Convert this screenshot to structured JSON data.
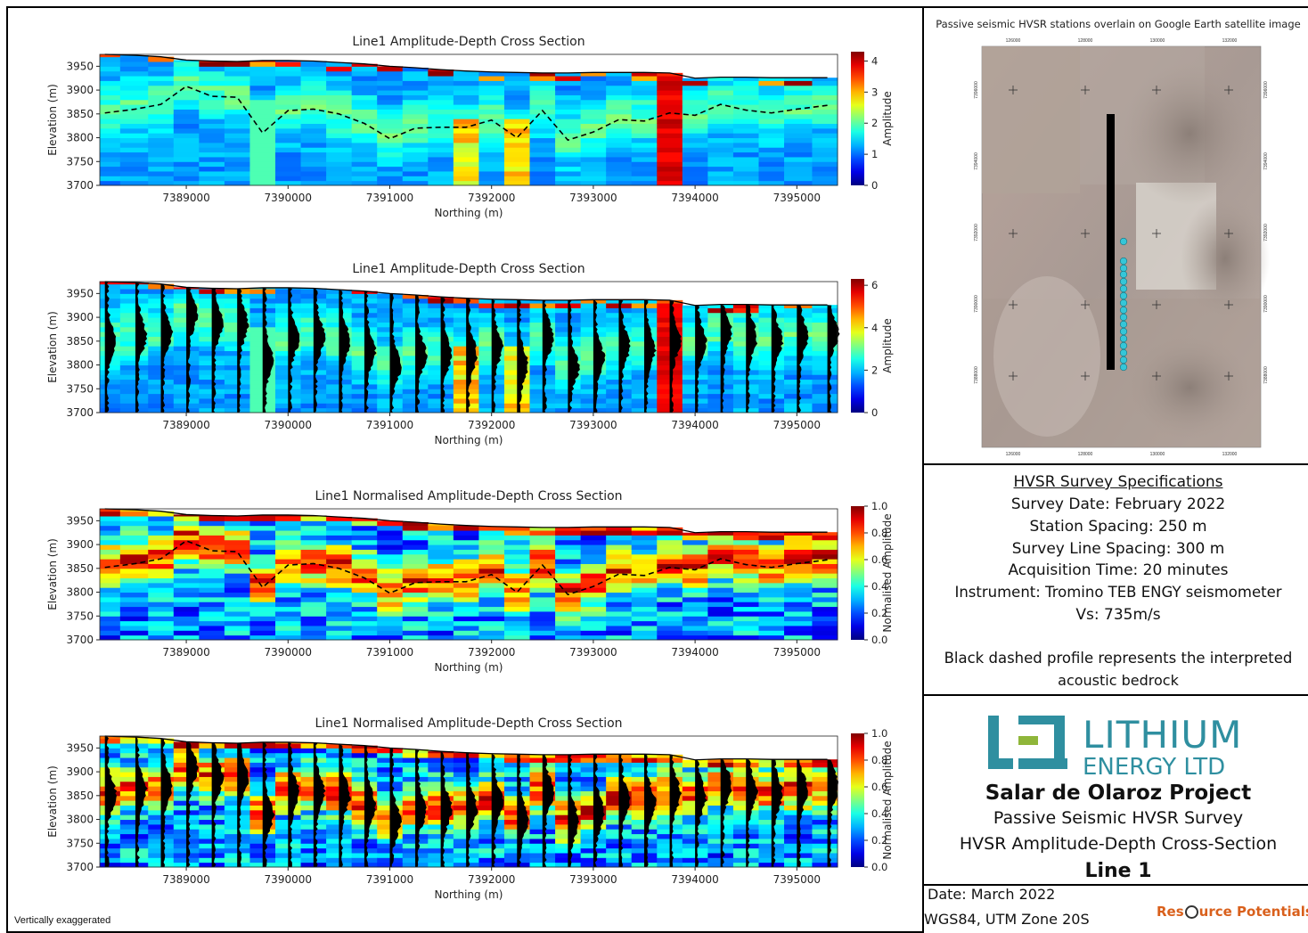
{
  "note": "Vertically exaggerated",
  "map": {
    "title": "Passive seismic HVSR stations overlain on Google Earth satellite image",
    "top_ticks": [
      "126000",
      "128000",
      "130000",
      "132000"
    ],
    "bottom_ticks": [
      "126000",
      "128000",
      "130000",
      "132000"
    ],
    "left_ticks": [
      "7396000",
      "7394000",
      "7392000",
      "7390000",
      "7388000"
    ],
    "right_ticks": [
      "7396000",
      "7394000",
      "7392000",
      "7390000",
      "7388000"
    ],
    "station_color": "#35c6d8",
    "line_color": "#000000"
  },
  "specs": {
    "heading": "HVSR Survey Specifications",
    "lines": [
      "Survey Date: February 2022",
      "Station Spacing:  250 m",
      "Survey Line Spacing: 300 m",
      "Acquisition Time: 20 minutes",
      "Instrument: Tromino TEB ENGY seismometer",
      "Vs: 735m/s"
    ],
    "note": [
      "Black dashed profile represents the interpreted",
      "acoustic bedrock"
    ]
  },
  "logo": {
    "word1": "LITHIUM",
    "word2": "ENERGY LTD",
    "accent": "#2f8fa0",
    "secondary": "#8fb63a"
  },
  "project": {
    "name": "Salar de Olaroz Project",
    "subtitle1": "Passive Seismic HVSR Survey",
    "subtitle2": "HVSR Amplitude-Depth Cross-Section",
    "line": "Line 1"
  },
  "footer": {
    "date": "Date: March 2022",
    "datum": "WGS84, UTM Zone 20S",
    "brand_left": "Res",
    "brand_right": "urce Potentials",
    "brand_color": "#d9601c"
  },
  "chart_data": [
    {
      "type": "heatmap",
      "title": "Line1 Amplitude-Depth Cross Section",
      "xlabel": "Northing (m)",
      "ylabel": "Elevation (m)",
      "colorbar_label": "Amplitude",
      "xticks": [
        7389000,
        7390000,
        7391000,
        7392000,
        7393000,
        7394000,
        7395000
      ],
      "yticks": [
        3700,
        3750,
        3800,
        3850,
        3900,
        3950
      ],
      "xlim": [
        7388150,
        7395400
      ],
      "ylim": [
        3700,
        3975
      ],
      "cbar_ticks": [
        0,
        1,
        2,
        3,
        4
      ],
      "cbar_max": 4.3,
      "normalised": false,
      "wiggles": false,
      "bedrock_dashed": true
    },
    {
      "type": "heatmap",
      "title": "Line1 Amplitude-Depth Cross Section",
      "xlabel": "Northing (m)",
      "ylabel": "Elevation (m)",
      "colorbar_label": "Amplitude",
      "xticks": [
        7389000,
        7390000,
        7391000,
        7392000,
        7393000,
        7394000,
        7395000
      ],
      "yticks": [
        3700,
        3750,
        3800,
        3850,
        3900,
        3950
      ],
      "xlim": [
        7388150,
        7395400
      ],
      "ylim": [
        3700,
        3975
      ],
      "cbar_ticks": [
        0,
        2,
        4,
        6
      ],
      "cbar_max": 6.3,
      "normalised": false,
      "wiggles": true,
      "bedrock_dashed": false
    },
    {
      "type": "heatmap",
      "title": "Line1 Normalised Amplitude-Depth Cross Section",
      "xlabel": "Northing (m)",
      "ylabel": "Elevation (m)",
      "colorbar_label": "Normalised Amplitude",
      "xticks": [
        7389000,
        7390000,
        7391000,
        7392000,
        7393000,
        7394000,
        7395000
      ],
      "yticks": [
        3700,
        3750,
        3800,
        3850,
        3900,
        3950
      ],
      "xlim": [
        7388150,
        7395400
      ],
      "ylim": [
        3700,
        3975
      ],
      "cbar_ticks": [
        0.0,
        0.2,
        0.4,
        0.6,
        0.8,
        1.0
      ],
      "cbar_max": 1.0,
      "normalised": true,
      "wiggles": false,
      "bedrock_dashed": true
    },
    {
      "type": "heatmap",
      "title": "Line1 Normalised Amplitude-Depth Cross Section",
      "xlabel": "Northing (m)",
      "ylabel": "Elevation (m)",
      "colorbar_label": "Normalised Amplitude",
      "xticks": [
        7389000,
        7390000,
        7391000,
        7392000,
        7393000,
        7394000,
        7395000
      ],
      "yticks": [
        3700,
        3750,
        3800,
        3850,
        3900,
        3950
      ],
      "xlim": [
        7388150,
        7395400
      ],
      "ylim": [
        3700,
        3975
      ],
      "cbar_ticks": [
        0.0,
        0.2,
        0.4,
        0.6,
        0.8,
        1.0
      ],
      "cbar_max": 1.0,
      "normalised": true,
      "wiggles": true,
      "bedrock_dashed": false
    }
  ],
  "profile": {
    "stations_x": [
      7388200,
      7388500,
      7388750,
      7389000,
      7389250,
      7389500,
      7389750,
      7390000,
      7390250,
      7390500,
      7390750,
      7391000,
      7391250,
      7391500,
      7391750,
      7392000,
      7392250,
      7392500,
      7392750,
      7393000,
      7393250,
      7393500,
      7393750,
      7394000,
      7394250,
      7394500,
      7394750,
      7395000,
      7395300
    ],
    "surface": [
      3975,
      3973,
      3970,
      3963,
      3961,
      3960,
      3962,
      3962,
      3961,
      3958,
      3955,
      3950,
      3947,
      3943,
      3940,
      3938,
      3937,
      3936,
      3936,
      3937,
      3937,
      3937,
      3936,
      3925,
      3927,
      3927,
      3926,
      3926,
      3926
    ],
    "bedrock": [
      3852,
      3860,
      3870,
      3908,
      3887,
      3885,
      3810,
      3857,
      3860,
      3850,
      3830,
      3798,
      3820,
      3822,
      3822,
      3837,
      3800,
      3857,
      3795,
      3812,
      3838,
      3835,
      3852,
      3847,
      3870,
      3858,
      3852,
      3860,
      3868
    ]
  }
}
